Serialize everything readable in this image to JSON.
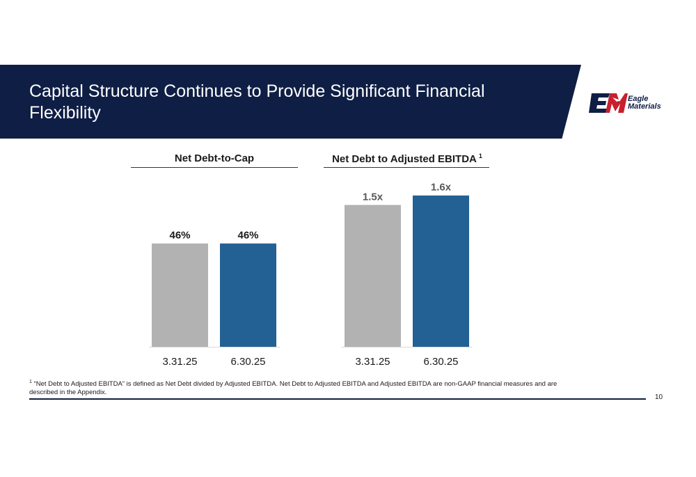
{
  "slide": {
    "title": "Capital Structure Continues to Provide Significant Financial Flexibility",
    "logo_text_line1": "Eagle",
    "logo_text_line2": "Materials",
    "footnote_marker": "1",
    "footnote": "“Net Debt to Adjusted EBITDA” is defined as Net Debt divided by Adjusted EBITDA.  Net Debt to Adjusted EBITDA and Adjusted EBITDA are non-GAAP financial measures and are described in the Appendix.",
    "page_number": "10",
    "colors": {
      "banner": "#0f1e44",
      "prior_period": "#b2b2b2",
      "current_period": "#236094"
    }
  },
  "chart_data": [
    {
      "type": "bar",
      "title": "Net Debt-to-Cap",
      "categories": [
        "3.31.25",
        "6.30.25"
      ],
      "values": [
        46,
        46
      ],
      "data_labels": [
        "46%",
        "46%"
      ],
      "unit": "%",
      "ylim": [
        0,
        80
      ],
      "grid": false,
      "legend": "none"
    },
    {
      "type": "bar",
      "title": "Net Debt to Adjusted EBITDA",
      "title_footnote_marker": "1",
      "categories": [
        "3.31.25",
        "6.30.25"
      ],
      "values": [
        1.5,
        1.6
      ],
      "data_labels": [
        "1.5x",
        "1.6x"
      ],
      "unit": "x",
      "ylim": [
        0,
        1.9
      ],
      "grid": false,
      "legend": "none"
    }
  ]
}
